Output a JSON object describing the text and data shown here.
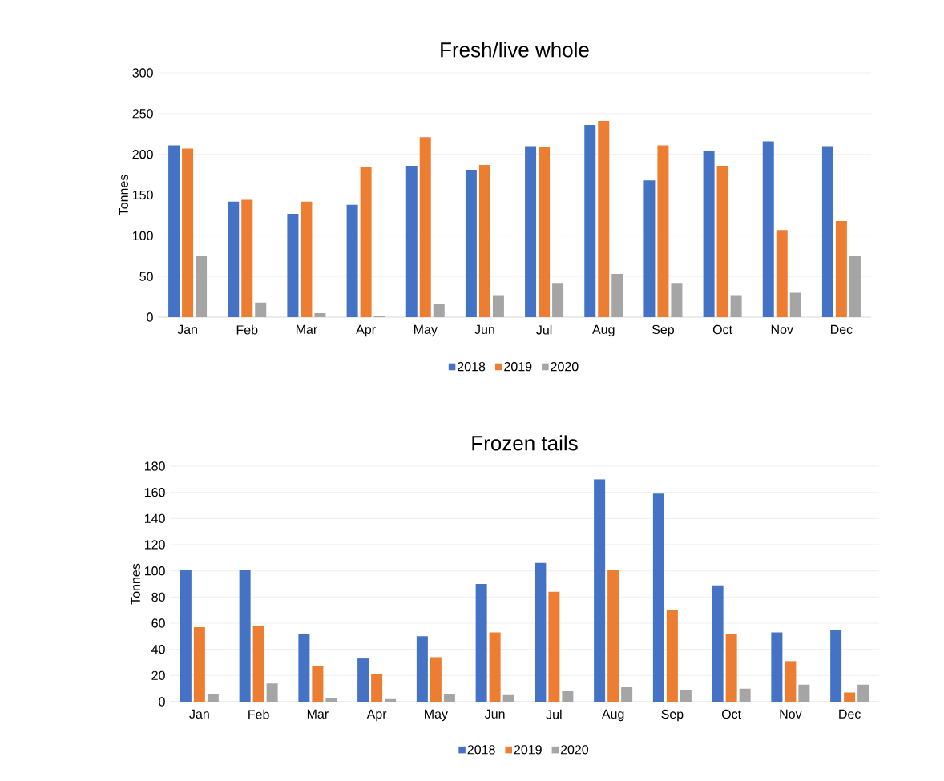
{
  "chart_data": [
    {
      "type": "bar",
      "title": "Fresh/live whole",
      "ylabel": "Tonnes",
      "categories": [
        "Jan",
        "Feb",
        "Mar",
        "Apr",
        "May",
        "Jun",
        "Jul",
        "Aug",
        "Sep",
        "Oct",
        "Nov",
        "Dec"
      ],
      "series": [
        {
          "name": "2018",
          "color": "#4472c4",
          "values": [
            211,
            142,
            127,
            138,
            186,
            181,
            210,
            236,
            168,
            204,
            216,
            210
          ]
        },
        {
          "name": "2019",
          "color": "#ed7d31",
          "values": [
            207,
            144,
            142,
            184,
            221,
            187,
            209,
            241,
            211,
            186,
            107,
            118
          ]
        },
        {
          "name": "2020",
          "color": "#a5a5a5",
          "values": [
            75,
            18,
            5,
            2,
            16,
            27,
            42,
            53,
            42,
            27,
            30,
            75
          ]
        }
      ],
      "ylim": [
        0,
        300
      ],
      "yticks": [
        0,
        50,
        100,
        150,
        200,
        250,
        300
      ],
      "grid": "y",
      "legend": "bottom"
    },
    {
      "type": "bar",
      "title": "Frozen tails",
      "ylabel": "Tonnes",
      "categories": [
        "Jan",
        "Feb",
        "Mar",
        "Apr",
        "May",
        "Jun",
        "Jul",
        "Aug",
        "Sep",
        "Oct",
        "Nov",
        "Dec"
      ],
      "series": [
        {
          "name": "2018",
          "color": "#4472c4",
          "values": [
            101,
            101,
            52,
            33,
            50,
            90,
            106,
            170,
            159,
            89,
            53,
            55
          ]
        },
        {
          "name": "2019",
          "color": "#ed7d31",
          "values": [
            57,
            58,
            27,
            21,
            34,
            53,
            84,
            101,
            70,
            52,
            31,
            7
          ]
        },
        {
          "name": "2020",
          "color": "#a5a5a5",
          "values": [
            6,
            14,
            3,
            2,
            6,
            5,
            8,
            11,
            9,
            10,
            13,
            13
          ]
        }
      ],
      "ylim": [
        0,
        180
      ],
      "yticks": [
        0,
        20,
        40,
        60,
        80,
        100,
        120,
        140,
        160,
        180
      ],
      "grid": "y",
      "legend": "bottom"
    }
  ]
}
